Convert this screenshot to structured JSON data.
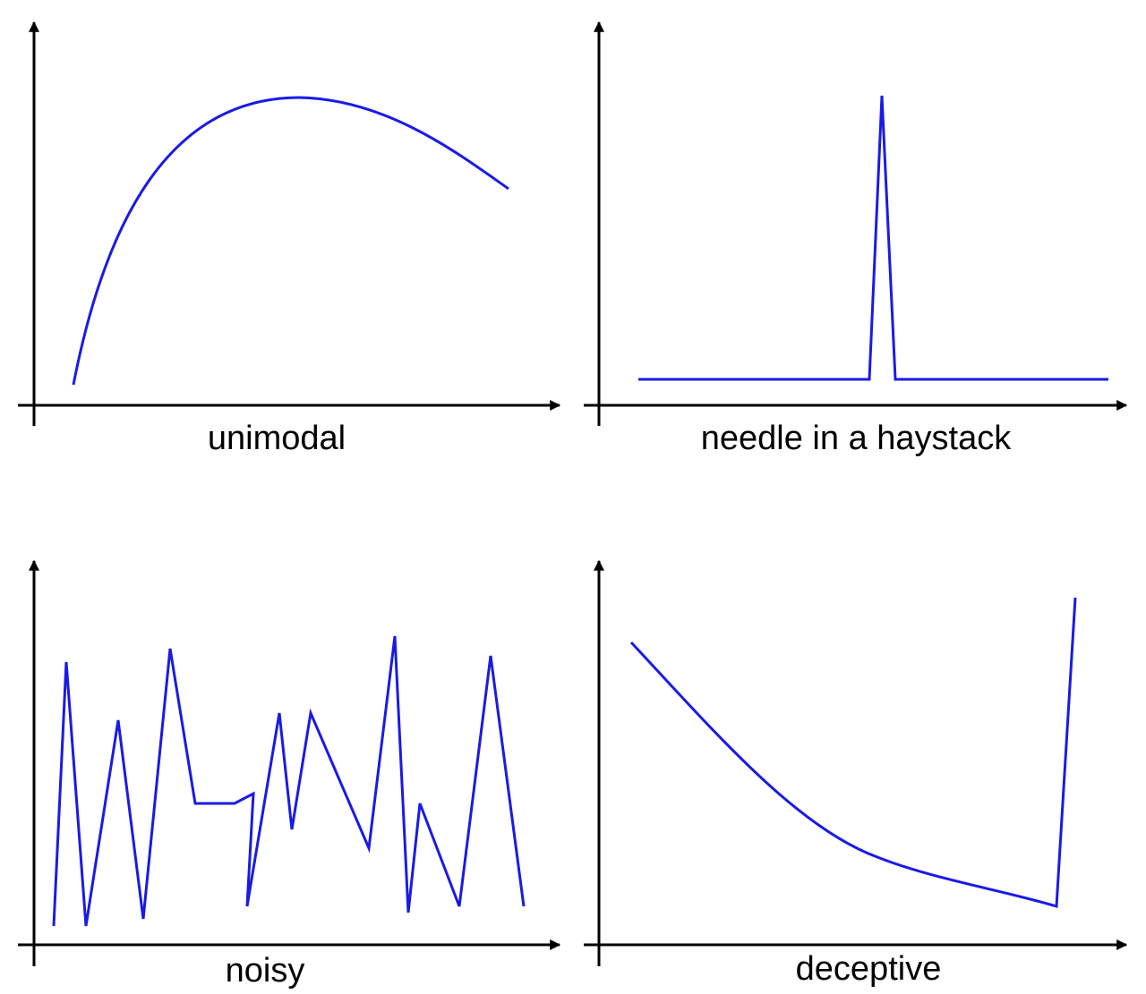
{
  "panels": [
    {
      "label": "unimodal"
    },
    {
      "label": "needle in a haystack"
    },
    {
      "label": "noisy"
    },
    {
      "label": "deceptive"
    }
  ]
}
